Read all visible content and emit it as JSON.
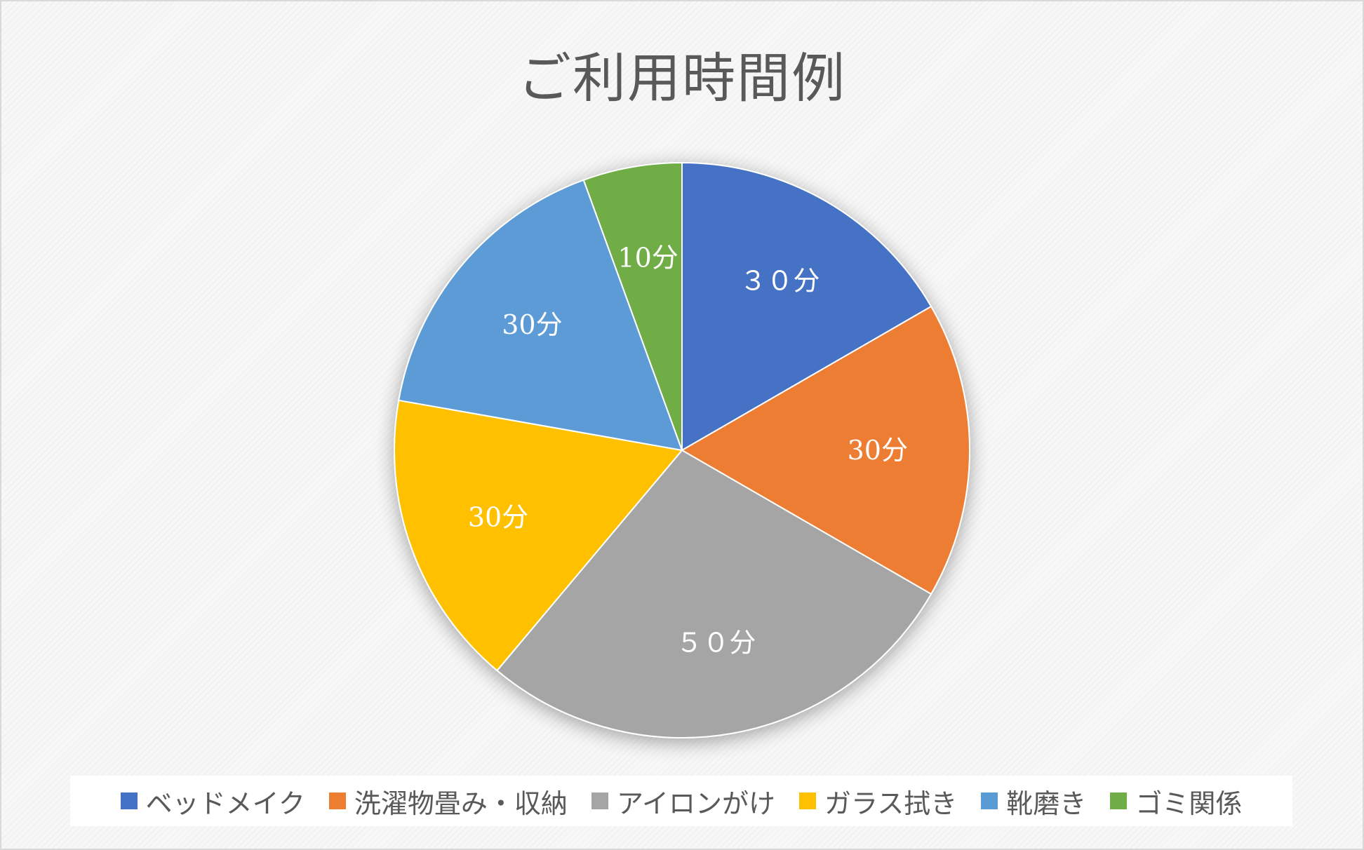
{
  "chart_data": {
    "type": "pie",
    "title": "ご利用時間例",
    "categories": [
      "ベッドメイク",
      "洗濯物畳み・収納",
      "アイロンがけ",
      "ガラス拭き",
      "靴磨き",
      "ゴミ関係"
    ],
    "values": [
      30,
      30,
      50,
      30,
      30,
      10
    ],
    "data_labels": [
      "３０分",
      "30分",
      "５０分",
      "30分",
      "30分",
      "10分"
    ],
    "colors": [
      "#4472C4",
      "#ED7D31",
      "#A5A5A5",
      "#FFC000",
      "#5B9BD5",
      "#70AD47"
    ],
    "legend_position": "bottom"
  }
}
